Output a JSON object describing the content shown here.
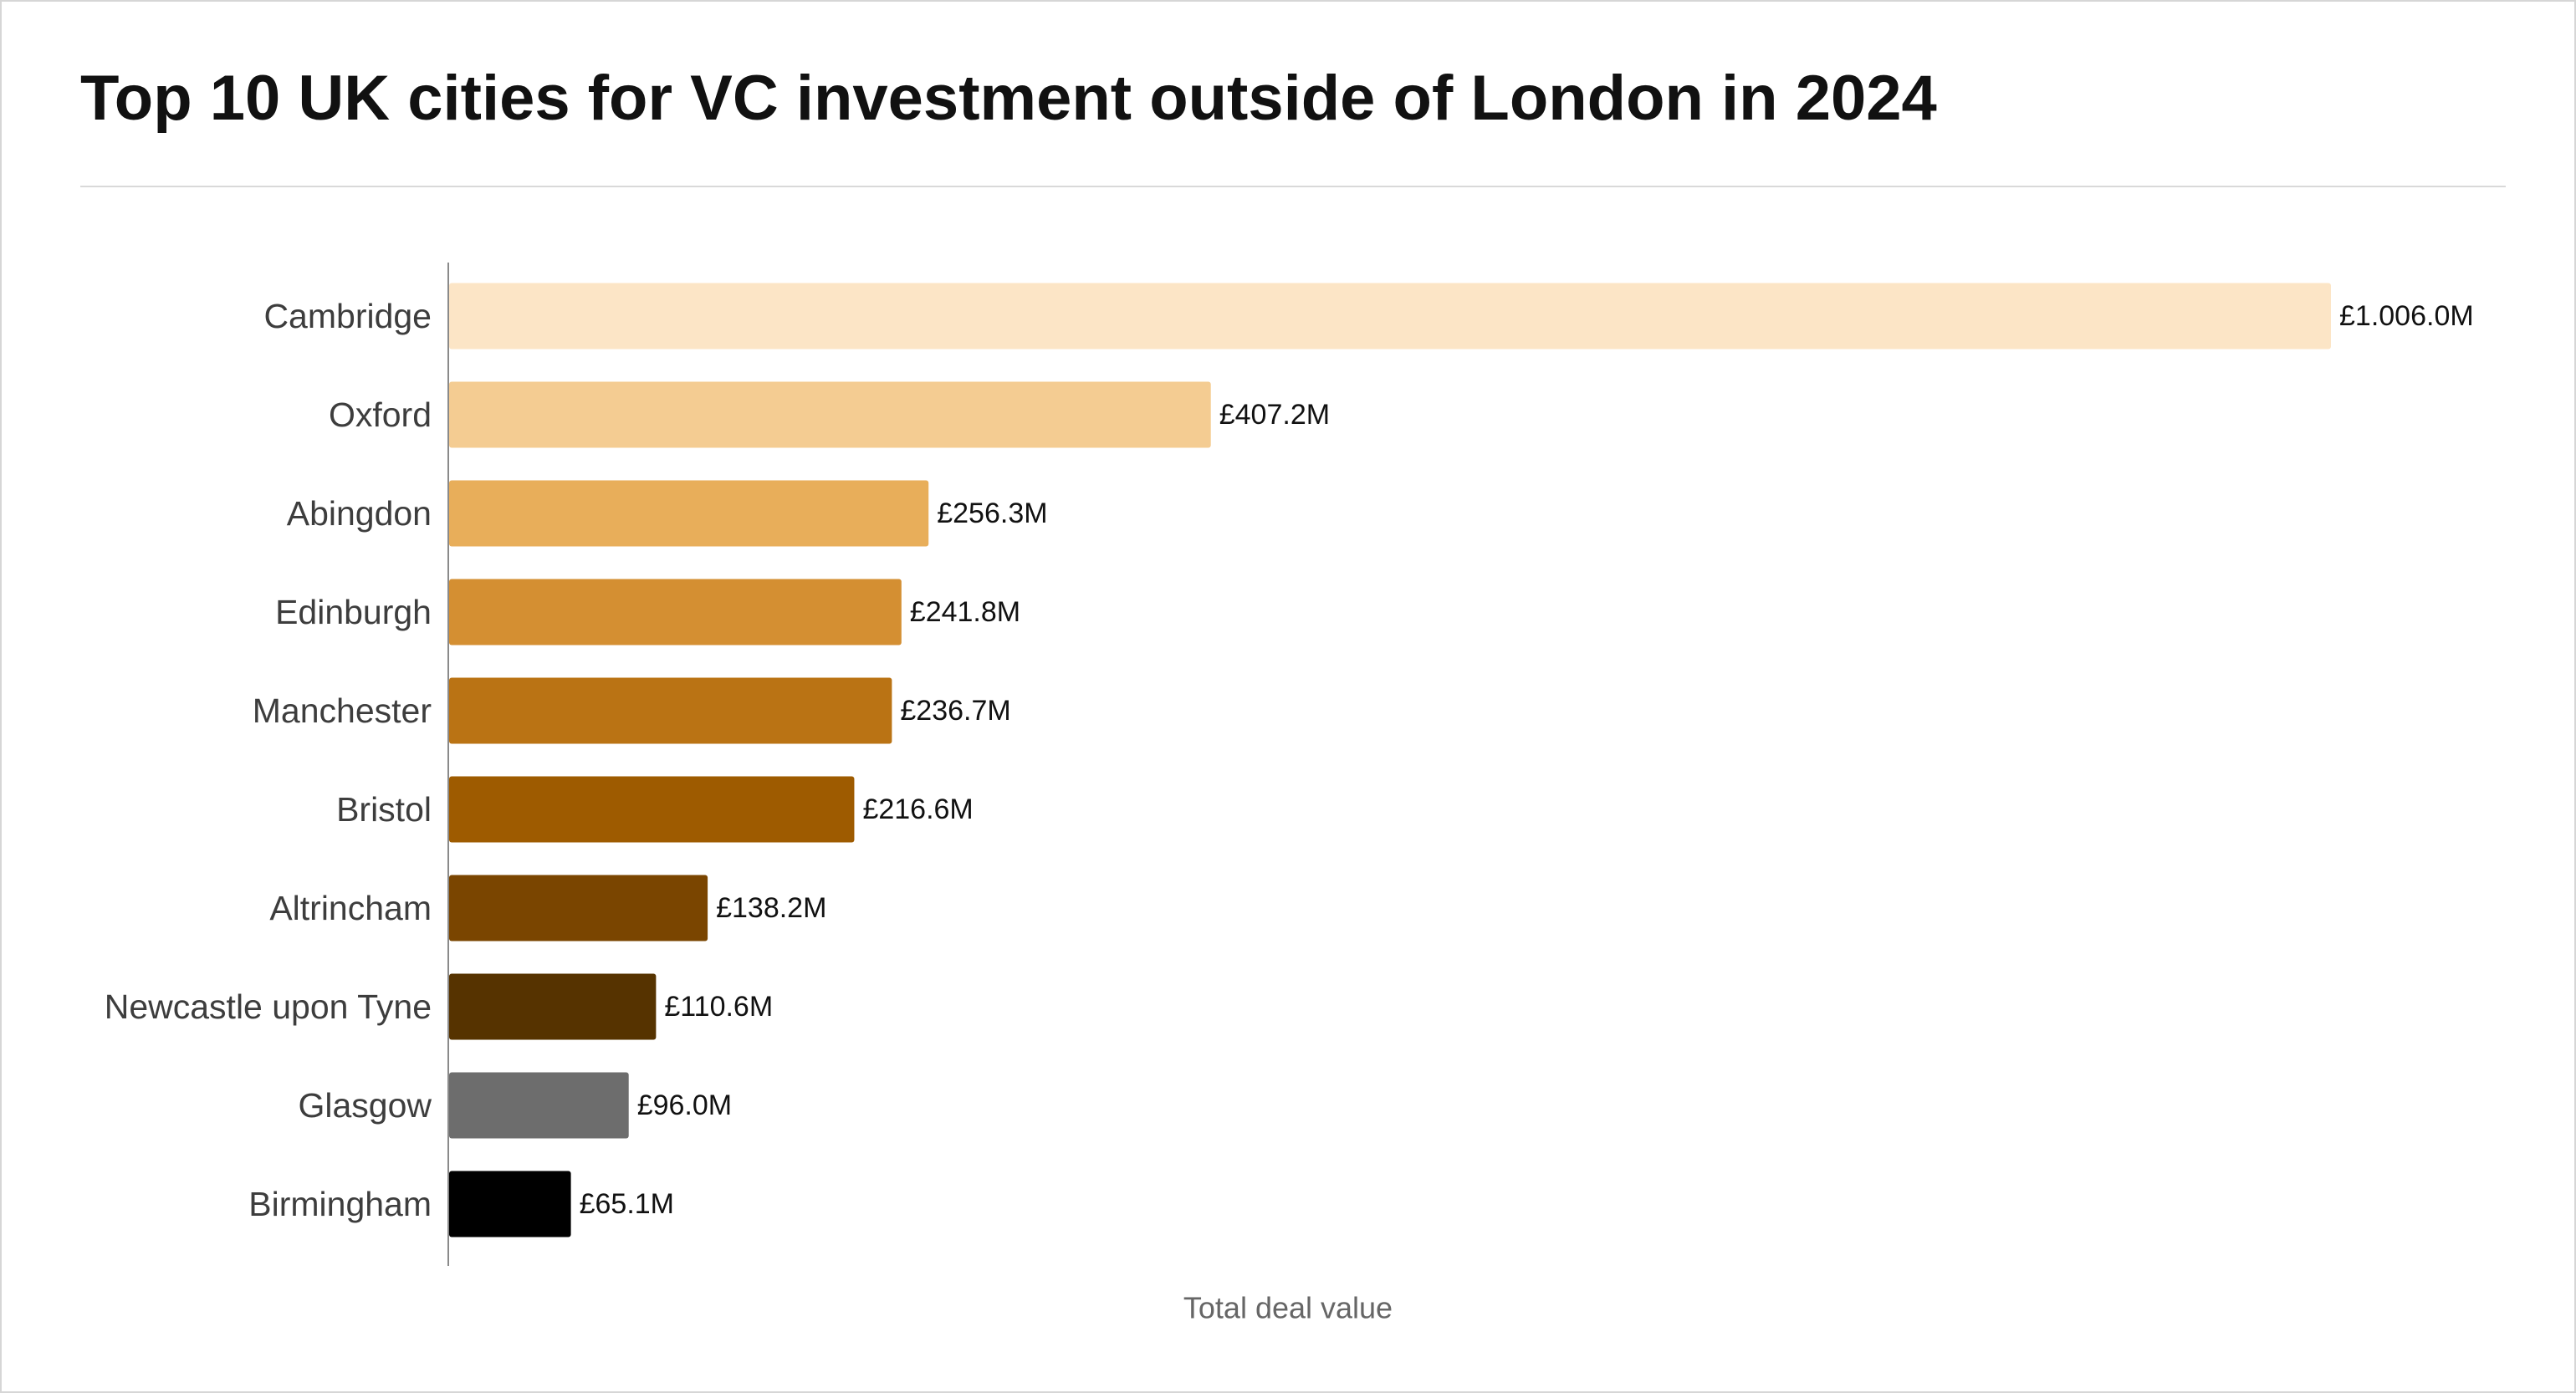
{
  "chart_data": {
    "type": "bar",
    "orientation": "horizontal",
    "title": "Top 10 UK cities for VC investment outside of London in 2024",
    "xlabel": "Total deal value",
    "ylabel": "",
    "categories": [
      "Cambridge",
      "Oxford",
      "Abingdon",
      "Edinburgh",
      "Manchester",
      "Bristol",
      "Altrincham",
      "Newcastle upon Tyne",
      "Glasgow",
      "Birmingham"
    ],
    "values": [
      1006.0,
      407.2,
      256.3,
      241.8,
      236.7,
      216.6,
      138.2,
      110.6,
      96.0,
      65.1
    ],
    "value_labels": [
      "£1.006.0M",
      "£407.2M",
      "£256.3M",
      "£241.8M",
      "£236.7M",
      "£216.6M",
      "£138.2M",
      "£110.6M",
      "£96.0M",
      "£65.1M"
    ],
    "colors": [
      "#fce5c6",
      "#f4cc92",
      "#e8ae5a",
      "#d48f32",
      "#ba7314",
      "#9e5b00",
      "#7a4500",
      "#563300",
      "#6d6d6d",
      "#000000"
    ],
    "xlim": [
      0,
      1006.0
    ],
    "grid": false,
    "legend": "none"
  }
}
